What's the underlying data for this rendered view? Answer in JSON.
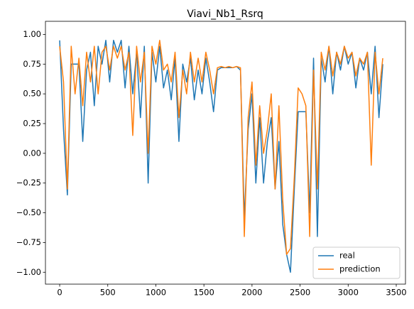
{
  "chart_data": {
    "type": "line",
    "title": "Viavi_Nb1_Rsrq",
    "x": [
      0,
      40,
      80,
      120,
      160,
      200,
      240,
      280,
      320,
      360,
      400,
      440,
      480,
      520,
      560,
      600,
      640,
      680,
      720,
      760,
      800,
      840,
      880,
      920,
      960,
      1000,
      1040,
      1080,
      1120,
      1160,
      1200,
      1240,
      1280,
      1320,
      1360,
      1400,
      1440,
      1480,
      1520,
      1560,
      1600,
      1640,
      1680,
      1720,
      1760,
      1800,
      1840,
      1880,
      1920,
      1960,
      2000,
      2040,
      2080,
      2120,
      2160,
      2200,
      2240,
      2280,
      2320,
      2360,
      2400,
      2440,
      2480,
      2520,
      2560,
      2600,
      2640,
      2680,
      2720,
      2760,
      2800,
      2840,
      2880,
      2920,
      2960,
      3000,
      3040,
      3080,
      3120,
      3160,
      3200,
      3240,
      3280,
      3320,
      3360
    ],
    "series": [
      {
        "name": "real",
        "color": "#1f77b4",
        "values": [
          0.95,
          0.2,
          -0.35,
          0.75,
          0.75,
          0.75,
          0.1,
          0.7,
          0.85,
          0.4,
          0.9,
          0.75,
          0.95,
          0.6,
          0.95,
          0.85,
          0.95,
          0.55,
          0.9,
          0.5,
          0.85,
          0.3,
          0.9,
          -0.25,
          0.85,
          0.6,
          0.9,
          0.55,
          0.7,
          0.45,
          0.8,
          0.1,
          0.75,
          0.6,
          0.8,
          0.45,
          0.7,
          0.5,
          0.8,
          0.6,
          0.35,
          0.7,
          0.72,
          0.72,
          0.72,
          0.72,
          0.73,
          0.7,
          -0.55,
          0.2,
          0.5,
          -0.25,
          0.3,
          -0.25,
          0.1,
          0.3,
          -0.3,
          0.1,
          -0.6,
          -0.85,
          -1.0,
          -0.3,
          0.35,
          0.35,
          0.35,
          -0.5,
          0.8,
          -0.7,
          0.8,
          0.6,
          0.9,
          0.5,
          0.85,
          0.7,
          0.9,
          0.75,
          0.85,
          0.55,
          0.8,
          0.7,
          0.85,
          0.5,
          0.9,
          0.3,
          0.75
        ]
      },
      {
        "name": "prediction",
        "color": "#ff7f0e",
        "values": [
          0.9,
          0.6,
          -0.3,
          0.9,
          0.5,
          0.8,
          0.4,
          0.85,
          0.6,
          0.9,
          0.5,
          0.85,
          0.9,
          0.7,
          0.9,
          0.8,
          0.9,
          0.7,
          0.85,
          0.15,
          0.9,
          0.6,
          0.85,
          0.0,
          0.9,
          0.75,
          0.95,
          0.7,
          0.75,
          0.6,
          0.85,
          0.3,
          0.7,
          0.5,
          0.85,
          0.6,
          0.8,
          0.6,
          0.85,
          0.7,
          0.5,
          0.72,
          0.73,
          0.72,
          0.73,
          0.72,
          0.73,
          0.72,
          -0.7,
          0.3,
          0.6,
          -0.1,
          0.4,
          0.0,
          0.2,
          0.5,
          -0.3,
          0.4,
          -0.4,
          -0.85,
          -0.8,
          -0.2,
          0.55,
          0.5,
          0.4,
          -0.7,
          0.7,
          -0.3,
          0.85,
          0.7,
          0.9,
          0.65,
          0.85,
          0.75,
          0.9,
          0.8,
          0.85,
          0.65,
          0.8,
          0.75,
          0.85,
          -0.1,
          0.85,
          0.5,
          0.8
        ]
      }
    ],
    "xlim": [
      -148,
      3596
    ],
    "xticks": [
      0,
      500,
      1000,
      1500,
      2000,
      2500,
      3000,
      3500
    ],
    "ylim": [
      -1.1,
      1.11
    ],
    "yticks": [
      {
        "value": -1,
        "label": "−1.00"
      },
      {
        "value": -0.75,
        "label": "−0.75"
      },
      {
        "value": -0.5,
        "label": "−0.50"
      },
      {
        "value": -0.25,
        "label": "−0.25"
      },
      {
        "value": 0,
        "label": "0.00"
      },
      {
        "value": 0.25,
        "label": "0.25"
      },
      {
        "value": 0.5,
        "label": "0.50"
      },
      {
        "value": 0.75,
        "label": "0.75"
      },
      {
        "value": 1,
        "label": "1.00"
      }
    ],
    "legend": "lower right"
  }
}
